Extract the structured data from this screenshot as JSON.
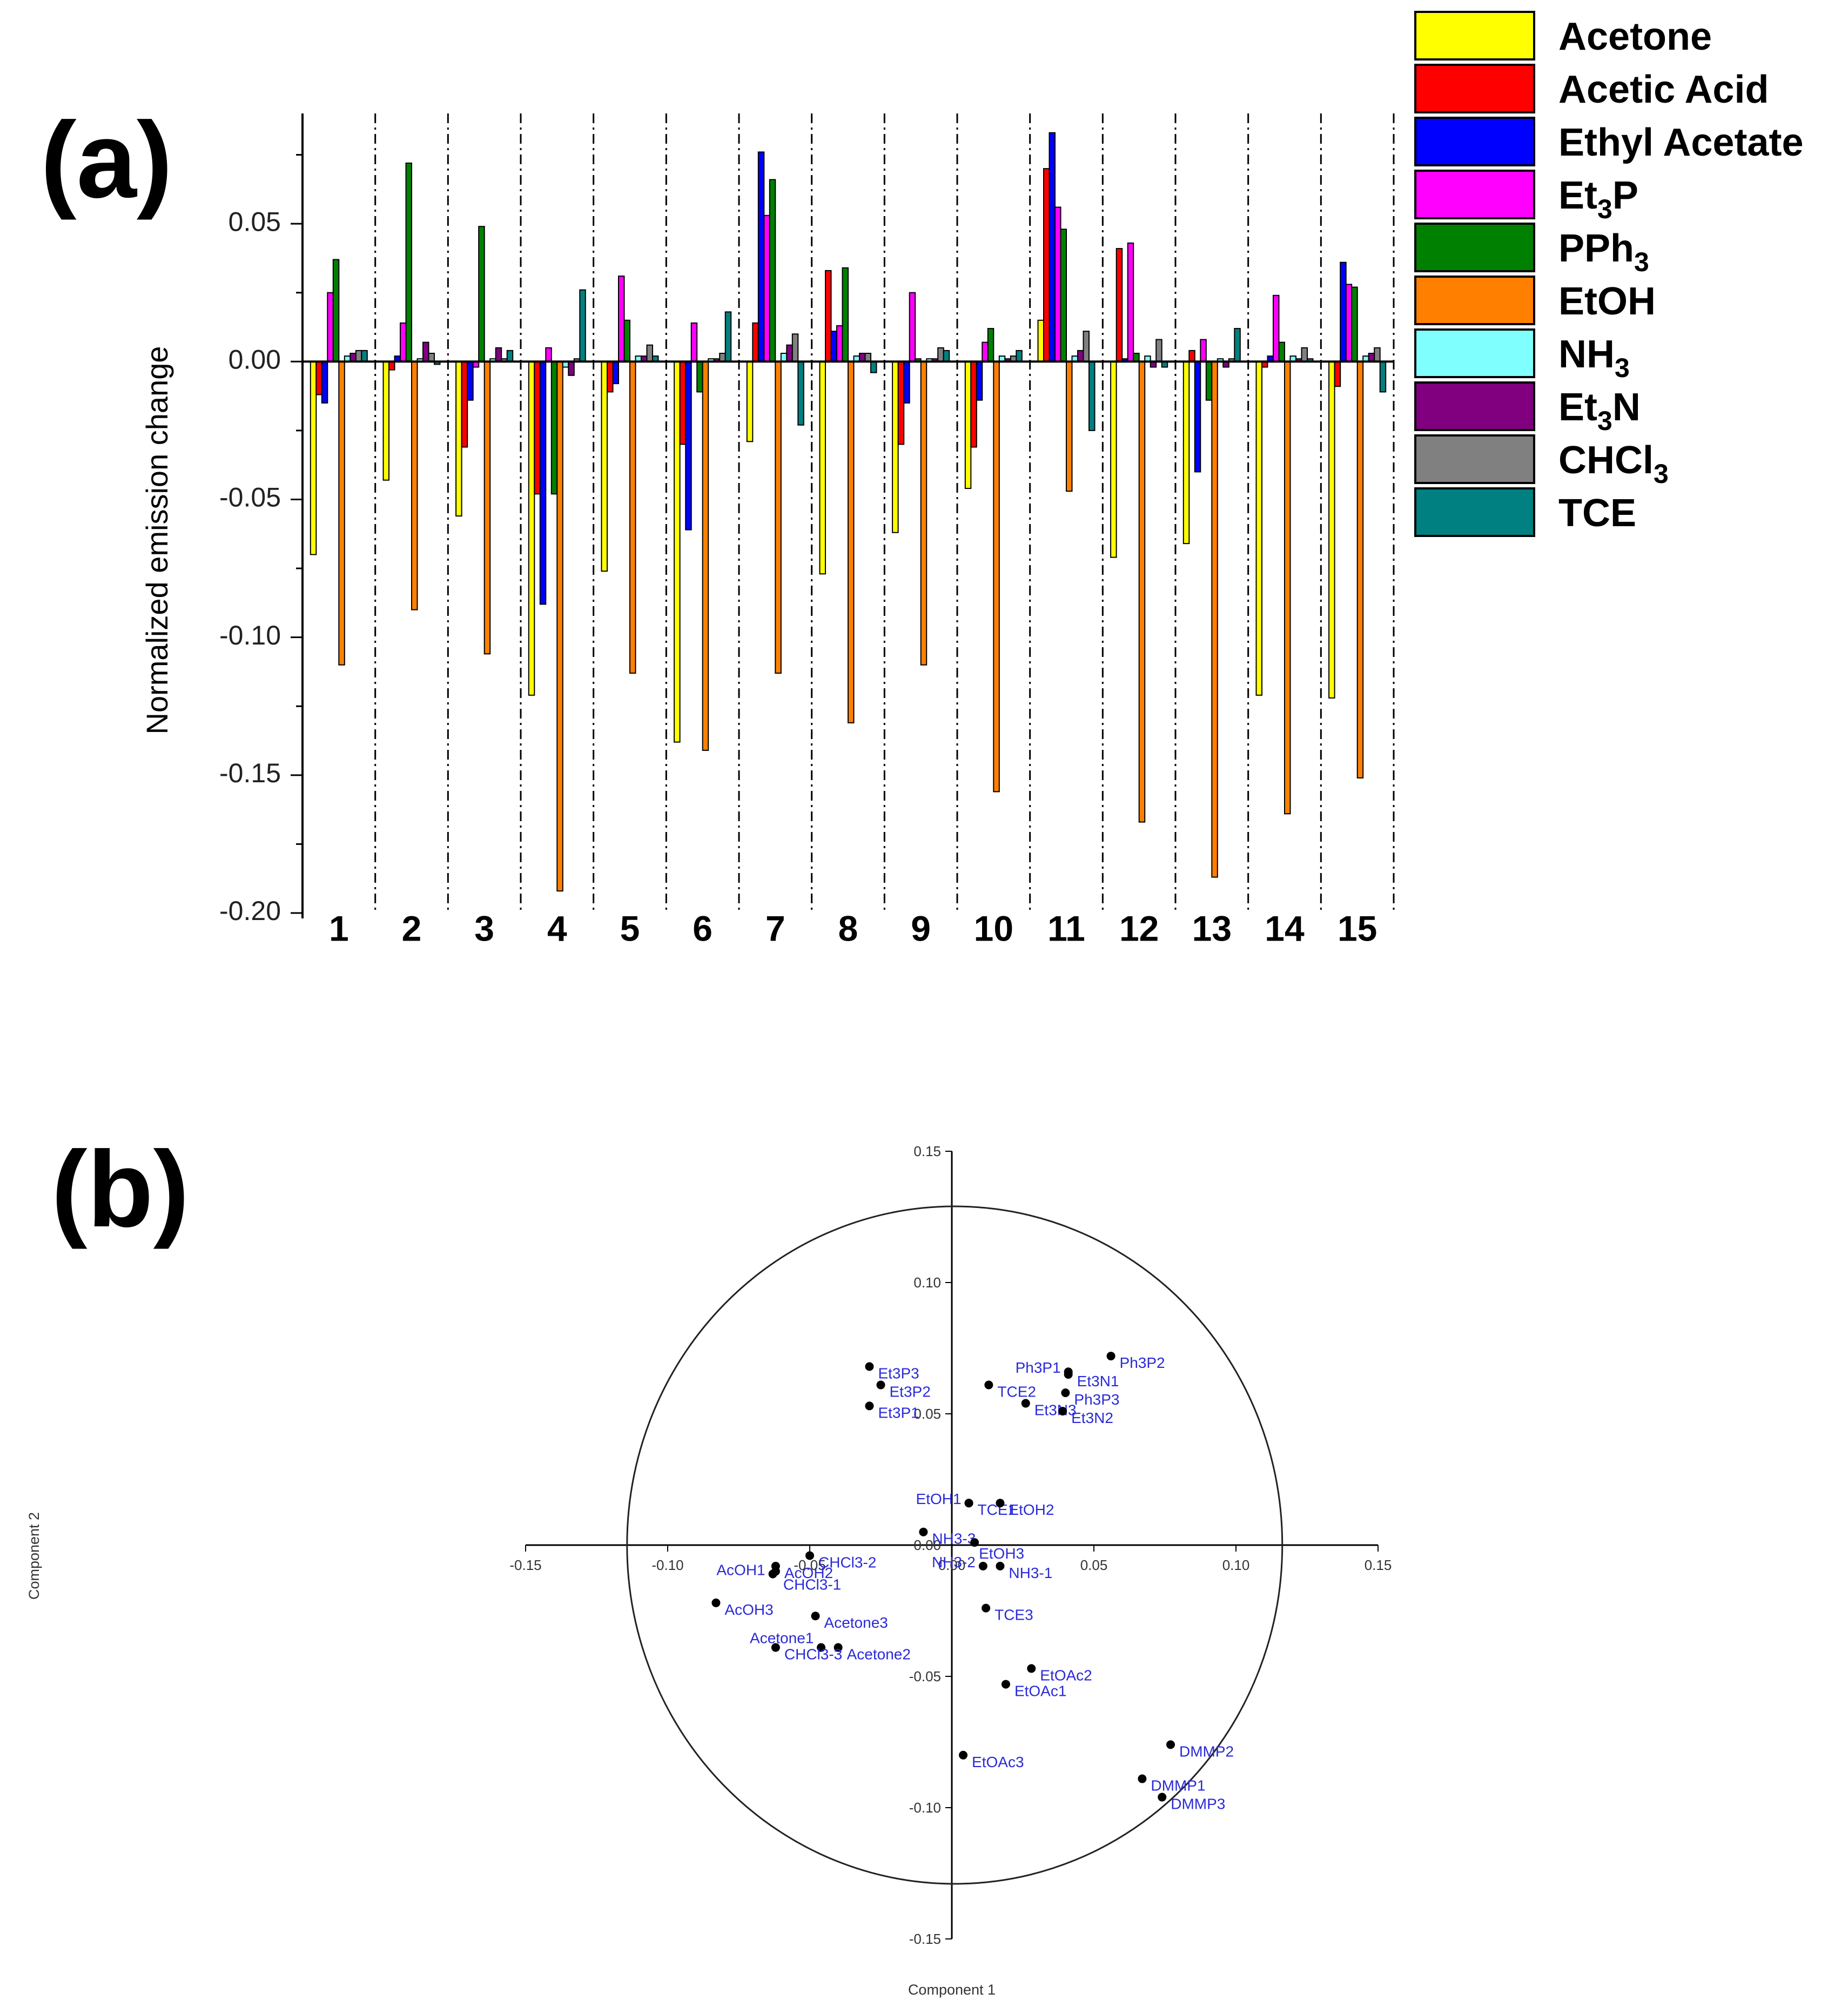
{
  "panel_a_label": "(a)",
  "panel_b_label": "(b)",
  "chart_data": [
    {
      "type": "bar",
      "ylabel": "Normalized emission change",
      "xlabel": "",
      "ylim": [
        -0.2,
        0.09
      ],
      "yticks": [
        "0.05",
        "0.00",
        "-0.05",
        "-0.10",
        "-0.15",
        "-0.20"
      ],
      "ytick_values": [
        0.05,
        0.0,
        -0.05,
        -0.1,
        -0.15,
        -0.2
      ],
      "categories": [
        "1",
        "2",
        "3",
        "4",
        "5",
        "6",
        "7",
        "8",
        "9",
        "10",
        "11",
        "12",
        "13",
        "14",
        "15"
      ],
      "legend_position": "top-right, outside",
      "series": [
        {
          "name": "Acetone",
          "label_main": "Acetone",
          "label_sub": "",
          "label_tail": "",
          "color": "#ffff00",
          "values": [
            -0.07,
            -0.043,
            -0.056,
            -0.121,
            -0.076,
            -0.138,
            -0.029,
            -0.077,
            -0.062,
            -0.046,
            0.015,
            -0.071,
            -0.066,
            -0.121,
            -0.122
          ]
        },
        {
          "name": "Acetic Acid",
          "label_main": "Acetic Acid",
          "label_sub": "",
          "label_tail": "",
          "color": "#ff0000",
          "values": [
            -0.012,
            -0.003,
            -0.031,
            -0.048,
            -0.011,
            -0.03,
            0.014,
            0.033,
            -0.03,
            -0.031,
            0.07,
            0.041,
            0.004,
            -0.002,
            -0.009
          ]
        },
        {
          "name": "Ethyl Acetate",
          "label_main": "Ethyl Acetate",
          "label_sub": "",
          "label_tail": "",
          "color": "#0000ff",
          "values": [
            -0.015,
            0.002,
            -0.014,
            -0.088,
            -0.008,
            -0.061,
            0.076,
            0.011,
            -0.015,
            -0.014,
            0.083,
            0.001,
            -0.04,
            0.002,
            0.036
          ]
        },
        {
          "name": "Et3P",
          "label_main": "Et",
          "label_sub": "3",
          "label_tail": "P",
          "color": "#ff00ff",
          "values": [
            0.025,
            0.014,
            -0.002,
            0.005,
            0.031,
            0.014,
            0.053,
            0.013,
            0.025,
            0.007,
            0.056,
            0.043,
            0.008,
            0.024,
            0.028
          ]
        },
        {
          "name": "PPh3",
          "label_main": "PPh",
          "label_sub": "3",
          "label_tail": "",
          "color": "#008000",
          "values": [
            0.037,
            0.072,
            0.049,
            -0.048,
            0.015,
            -0.011,
            0.066,
            0.034,
            0.001,
            0.012,
            0.048,
            0.003,
            -0.014,
            0.007,
            0.027
          ]
        },
        {
          "name": "EtOH",
          "label_main": "EtOH",
          "label_sub": "",
          "label_tail": "",
          "color": "#ff8000",
          "values": [
            -0.11,
            -0.09,
            -0.106,
            -0.192,
            -0.113,
            -0.141,
            -0.113,
            -0.131,
            -0.11,
            -0.156,
            -0.047,
            -0.167,
            -0.187,
            -0.164,
            -0.151
          ]
        },
        {
          "name": "NH3",
          "label_main": "NH",
          "label_sub": "3",
          "label_tail": "",
          "color": "#80ffff",
          "values": [
            0.002,
            0.001,
            0.001,
            -0.002,
            0.002,
            0.001,
            0.003,
            0.002,
            0.001,
            0.002,
            0.002,
            0.002,
            0.001,
            0.002,
            0.002
          ]
        },
        {
          "name": "Et3N",
          "label_main": "Et",
          "label_sub": "3",
          "label_tail": "N",
          "color": "#800080",
          "values": [
            0.003,
            0.007,
            0.005,
            -0.005,
            0.002,
            0.001,
            0.006,
            0.003,
            0.001,
            0.001,
            0.004,
            -0.002,
            -0.002,
            0.001,
            0.003
          ]
        },
        {
          "name": "CHCl3",
          "label_main": "CHCl",
          "label_sub": "3",
          "label_tail": "",
          "color": "#808080",
          "values": [
            0.004,
            0.003,
            0.001,
            0.001,
            0.006,
            0.003,
            0.01,
            0.003,
            0.005,
            0.002,
            0.011,
            0.008,
            0.001,
            0.005,
            0.005
          ]
        },
        {
          "name": "TCE",
          "label_main": "TCE",
          "label_sub": "",
          "label_tail": "",
          "color": "#008080",
          "values": [
            0.004,
            -0.001,
            0.004,
            0.026,
            0.002,
            0.018,
            -0.023,
            -0.004,
            0.004,
            0.004,
            -0.025,
            -0.002,
            0.012,
            0.001,
            -0.011
          ]
        }
      ]
    },
    {
      "type": "scatter",
      "xlabel": "Component 1",
      "ylabel": "Component 2",
      "xlim": [
        -0.15,
        0.15
      ],
      "ylim": [
        -0.15,
        0.15
      ],
      "xticks": [
        "-0.15",
        "-0.10",
        "-0.05",
        "0.00",
        "0.05",
        "0.10",
        "0.15"
      ],
      "xtick_values": [
        -0.15,
        -0.1,
        -0.05,
        0.0,
        0.05,
        0.1,
        0.15
      ],
      "yticks": [
        "0.15",
        "0.10",
        "0.05",
        "0.00",
        "-0.05",
        "-0.10",
        "-0.15"
      ],
      "ytick_values": [
        0.15,
        0.1,
        0.05,
        0.0,
        -0.05,
        -0.1,
        -0.15
      ],
      "ellipse": {
        "center": [
          0.001,
          0.0
        ],
        "rx": 0.1153,
        "ry": 0.129
      },
      "point_color": "#000000",
      "label_color": "#2a2ad8",
      "points": [
        {
          "label": "Et3P3",
          "x": -0.029,
          "y": 0.068,
          "anchor": "right"
        },
        {
          "label": "Et3P2",
          "x": -0.025,
          "y": 0.061,
          "anchor": "right"
        },
        {
          "label": "Et3P1",
          "x": -0.029,
          "y": 0.053,
          "anchor": "right"
        },
        {
          "label": "TCE2",
          "x": 0.013,
          "y": 0.061,
          "anchor": "right"
        },
        {
          "label": "Et3N3",
          "x": 0.026,
          "y": 0.054,
          "anchor": "right"
        },
        {
          "label": "Ph3P1",
          "x": 0.041,
          "y": 0.066,
          "anchor": "left"
        },
        {
          "label": "Et3N1",
          "x": 0.041,
          "y": 0.065,
          "anchor": "right"
        },
        {
          "label": "Ph3P3",
          "x": 0.04,
          "y": 0.058,
          "anchor": "right"
        },
        {
          "label": "Et3N2",
          "x": 0.039,
          "y": 0.051,
          "anchor": "right"
        },
        {
          "label": "Ph3P2",
          "x": 0.056,
          "y": 0.072,
          "anchor": "right"
        },
        {
          "label": "EtOH1",
          "x": 0.006,
          "y": 0.016,
          "anchor": "left"
        },
        {
          "label": "TCE1",
          "x": 0.006,
          "y": 0.016,
          "anchor": "right"
        },
        {
          "label": "EtOH2",
          "x": 0.017,
          "y": 0.016,
          "anchor": "right"
        },
        {
          "label": "NH3-3",
          "x": -0.01,
          "y": 0.005,
          "anchor": "right"
        },
        {
          "label": "EtOH3",
          "x": 0.008,
          "y": 0.001,
          "anchor": "below"
        },
        {
          "label": "NH3-2",
          "x": 0.011,
          "y": -0.008,
          "anchor": "left"
        },
        {
          "label": "NH3-1",
          "x": 0.017,
          "y": -0.008,
          "anchor": "right"
        },
        {
          "label": "TCE3",
          "x": 0.012,
          "y": -0.024,
          "anchor": "right"
        },
        {
          "label": "EtOAc2",
          "x": 0.028,
          "y": -0.047,
          "anchor": "right"
        },
        {
          "label": "EtOAc1",
          "x": 0.019,
          "y": -0.053,
          "anchor": "right"
        },
        {
          "label": "EtOAc3",
          "x": 0.004,
          "y": -0.08,
          "anchor": "right"
        },
        {
          "label": "DMMP2",
          "x": 0.077,
          "y": -0.076,
          "anchor": "right"
        },
        {
          "label": "DMMP1",
          "x": 0.067,
          "y": -0.089,
          "anchor": "right"
        },
        {
          "label": "DMMP3",
          "x": 0.074,
          "y": -0.096,
          "anchor": "right"
        },
        {
          "label": "CHCl3-2",
          "x": -0.05,
          "y": -0.004,
          "anchor": "right"
        },
        {
          "label": "AcOH2",
          "x": -0.062,
          "y": -0.008,
          "anchor": "right"
        },
        {
          "label": "AcOH1",
          "x": -0.063,
          "y": -0.011,
          "anchor": "left"
        },
        {
          "label": "CHCl3-1",
          "x": -0.062,
          "y": -0.01,
          "anchor": "right-low"
        },
        {
          "label": "AcOH3",
          "x": -0.083,
          "y": -0.022,
          "anchor": "right"
        },
        {
          "label": "Acetone3",
          "x": -0.048,
          "y": -0.027,
          "anchor": "right"
        },
        {
          "label": "Acetone1",
          "x": -0.046,
          "y": -0.039,
          "anchor": "left-high"
        },
        {
          "label": "Acetone2",
          "x": -0.04,
          "y": -0.039,
          "anchor": "right"
        },
        {
          "label": "CHCl3-3",
          "x": -0.062,
          "y": -0.039,
          "anchor": "right"
        }
      ]
    }
  ]
}
